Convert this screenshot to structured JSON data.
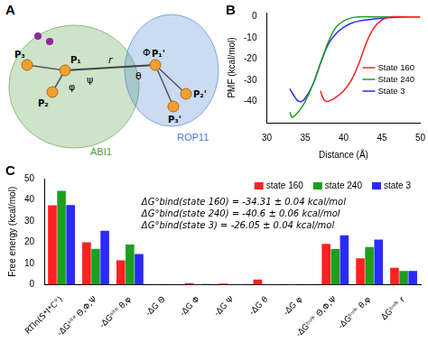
{
  "panel_a": {
    "label": "A",
    "proteins": [
      {
        "name": "ABI1",
        "color": "#4e9a3c"
      },
      {
        "name": "ROP11",
        "color": "#3f7fcf"
      }
    ],
    "anchors_left": [
      "P₁",
      "P₂",
      "P₃"
    ],
    "anchors_right": [
      "P₁'",
      "P₂'",
      "P₃'"
    ],
    "distance": "r",
    "angles": [
      "ψ",
      "φ",
      "θ",
      "Φ"
    ]
  },
  "chart_data": [
    {
      "label": "B",
      "type": "line",
      "x_label": "Distance (Å)",
      "y_label": "PMF (kcal/mol)",
      "xlim": [
        30,
        50
      ],
      "xticks": [
        30,
        35,
        40,
        45,
        50
      ],
      "ylim": [
        -50,
        2
      ],
      "yticks": [
        -40,
        -30,
        -20,
        -10,
        0
      ],
      "legend": "center right",
      "series": [
        {
          "name": "State 160",
          "color": "#ff2020",
          "x": [
            37.0,
            37.4,
            37.8,
            38.3,
            39,
            40,
            41,
            42,
            43,
            44,
            45,
            46,
            48,
            50
          ],
          "values": [
            -35,
            -39,
            -40,
            -39.5,
            -38,
            -35,
            -30,
            -22,
            -12,
            -5,
            -1.5,
            0,
            0,
            0
          ]
        },
        {
          "name": "State 240",
          "color": "#1e9e1e",
          "x": [
            33,
            33.3,
            33.7,
            34.3,
            35,
            36,
            37,
            38,
            39,
            40,
            41,
            42,
            45,
            50
          ],
          "values": [
            -45,
            -47.5,
            -46.5,
            -44,
            -40,
            -32,
            -22,
            -12,
            -5,
            -2,
            -0.5,
            0,
            0,
            0
          ]
        },
        {
          "name": "State 3",
          "color": "#2a2aff",
          "x": [
            33,
            33.5,
            34,
            34.5,
            35,
            36,
            37,
            38,
            39,
            40,
            41,
            42,
            44,
            46,
            48
          ],
          "values": [
            -34,
            -37,
            -39.5,
            -40,
            -38.5,
            -32,
            -22,
            -13,
            -8,
            -5,
            -3,
            -2,
            -1,
            -0.3,
            0
          ]
        }
      ]
    },
    {
      "label": "C",
      "type": "bar",
      "y_label": "Free energy (kcal/mol)",
      "categories": [
        "RTln(S*I*C°)",
        "-ΔGˢⁱᵗᵉ Θ,Φ,Ψ",
        "-ΔGˢⁱᵗᵉ θ,φ",
        "-ΔG Θ",
        "-ΔG Φ",
        "-ΔG Ψ",
        "-ΔG θ",
        "-ΔG φ",
        "-ΔGᵇᵘˡᵏ Θ,Φ,Ψ",
        "-ΔGᵇᵘˡᵏ θ,φ",
        "ΔGᵇᵘˡᵏ r"
      ],
      "ylim": [
        0,
        50
      ],
      "yticks": [
        0,
        10,
        20,
        30,
        40,
        50
      ],
      "legend": "upper right",
      "annotations": [
        "ΔG°bind(state 160) = -34.31 ± 0.04 kcal/mol",
        "ΔG°bind(state 240) = -40.6 ± 0.06 kcal/mol",
        "ΔG°bind(state 3) = -26.05 ± 0.04 kcal/mol"
      ],
      "series": [
        {
          "name": "state 160",
          "color": "#ff2020",
          "values": [
            37.5,
            20,
            11.5,
            0.2,
            0.8,
            0.6,
            2.5,
            0.3,
            19.3,
            12.5,
            8
          ]
        },
        {
          "name": "state 240",
          "color": "#1e9e1e",
          "values": [
            44.3,
            17,
            19,
            0.1,
            0.3,
            0.2,
            0.2,
            0.1,
            16.8,
            17.8,
            6.5
          ]
        },
        {
          "name": "state 3",
          "color": "#2a2aff",
          "values": [
            37.6,
            25.5,
            14.5,
            0.2,
            0.4,
            0.3,
            0.2,
            0.2,
            23.3,
            21.3,
            6.5
          ]
        }
      ]
    }
  ]
}
